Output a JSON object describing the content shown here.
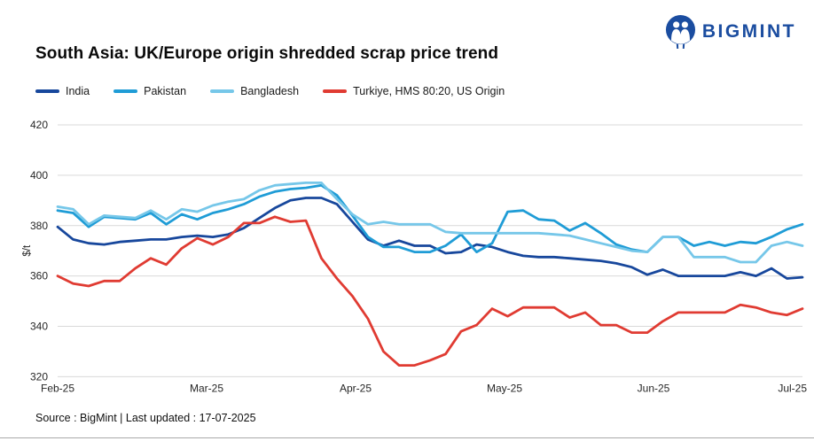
{
  "header": {
    "title": "South Asia: UK/Europe origin shredded scrap price trend",
    "logo_text": "BIGMINT",
    "logo_color": "#1b4da0"
  },
  "footer": {
    "source_line": "Source : BigMint | Last updated : 17-07-2025"
  },
  "chart_data": {
    "type": "line",
    "title": "South Asia: UK/Europe origin shredded scrap price trend",
    "xlabel": "",
    "ylabel": "$/t",
    "ylim": [
      320,
      420
    ],
    "yticks": [
      320,
      340,
      360,
      380,
      400,
      420
    ],
    "grid": "horizontal",
    "legend_position": "top-left",
    "x_labels": [
      "Feb-25",
      "Mar-25",
      "Apr-25",
      "May-25",
      "Jun-25",
      "Jul-25"
    ],
    "x": [
      "01-Feb",
      "04-Feb",
      "07-Feb",
      "11-Feb",
      "14-Feb",
      "18-Feb",
      "21-Feb",
      "25-Feb",
      "28-Feb",
      "04-Mar",
      "07-Mar",
      "11-Mar",
      "14-Mar",
      "18-Mar",
      "21-Mar",
      "25-Mar",
      "28-Mar",
      "01-Apr",
      "04-Apr",
      "08-Apr",
      "11-Apr",
      "15-Apr",
      "18-Apr",
      "22-Apr",
      "25-Apr",
      "29-Apr",
      "02-May",
      "06-May",
      "09-May",
      "13-May",
      "16-May",
      "20-May",
      "23-May",
      "27-May",
      "30-May",
      "03-Jun",
      "06-Jun",
      "10-Jun",
      "13-Jun",
      "17-Jun",
      "20-Jun",
      "24-Jun",
      "27-Jun",
      "01-Jul",
      "04-Jul",
      "08-Jul",
      "11-Jul",
      "15-Jul",
      "17-Jul"
    ],
    "series": [
      {
        "name": "India",
        "color": "#17479c",
        "values": [
          379.5,
          374.5,
          373,
          372.5,
          373.5,
          374,
          374.5,
          374.5,
          375.5,
          376,
          375.5,
          376.5,
          379,
          383,
          387,
          390,
          391,
          391,
          388.5,
          381.5,
          374.5,
          372,
          374,
          372,
          372,
          369,
          369.5,
          372.5,
          371.5,
          369.5,
          368,
          367.5,
          367.5,
          367,
          366.5,
          366,
          365,
          363.5,
          360.5,
          362.5,
          360,
          360,
          360,
          360,
          361.5,
          360,
          363,
          359,
          359.5
        ]
      },
      {
        "name": "Pakistan",
        "color": "#1f9cd6",
        "values": [
          386,
          385,
          379.5,
          383.5,
          383,
          382.5,
          385,
          380.5,
          384.5,
          382.5,
          385,
          386.5,
          388.5,
          391.5,
          393.5,
          394.5,
          395,
          396,
          392,
          384,
          375.5,
          371.5,
          371.5,
          369.5,
          369.5,
          372,
          376.5,
          369.5,
          373,
          385.5,
          386,
          382.5,
          382,
          378,
          381,
          377,
          372.5,
          370.5,
          369.5,
          375.5,
          375.5,
          372,
          373.5,
          372,
          373.5,
          373,
          375.5,
          378.5,
          380.5
        ]
      },
      {
        "name": "Bangladesh",
        "color": "#76c7e9",
        "values": [
          387.5,
          386.5,
          380.5,
          384,
          383.5,
          383,
          386,
          382.5,
          386.5,
          385.5,
          388,
          389.5,
          390.5,
          394,
          396,
          396.5,
          397,
          397,
          390.5,
          384.5,
          380.5,
          381.5,
          380.5,
          380.5,
          380.5,
          377.5,
          377,
          377,
          377,
          377,
          377,
          377,
          376.5,
          376,
          374.5,
          373,
          371.5,
          370,
          369.5,
          375.5,
          375.5,
          367.5,
          367.5,
          367.5,
          365.5,
          365.5,
          372,
          373.5,
          372
        ]
      },
      {
        "name": "Turkiye, HMS 80:20, US Origin",
        "color": "#e03b32",
        "values": [
          360,
          357,
          356,
          358,
          358,
          363,
          367,
          364.5,
          371,
          375,
          372.5,
          375.5,
          381,
          381,
          383.5,
          381.5,
          382,
          367,
          359,
          352,
          343,
          330,
          324.5,
          324.5,
          326.5,
          329,
          338,
          340.5,
          347,
          344,
          347.5,
          347.5,
          347.5,
          343.5,
          345.5,
          340.5,
          340.5,
          337.5,
          337.5,
          342,
          345.5,
          345.5,
          345.5,
          345.5,
          348.5,
          347.5,
          345.5,
          344.5,
          347
        ]
      }
    ]
  }
}
